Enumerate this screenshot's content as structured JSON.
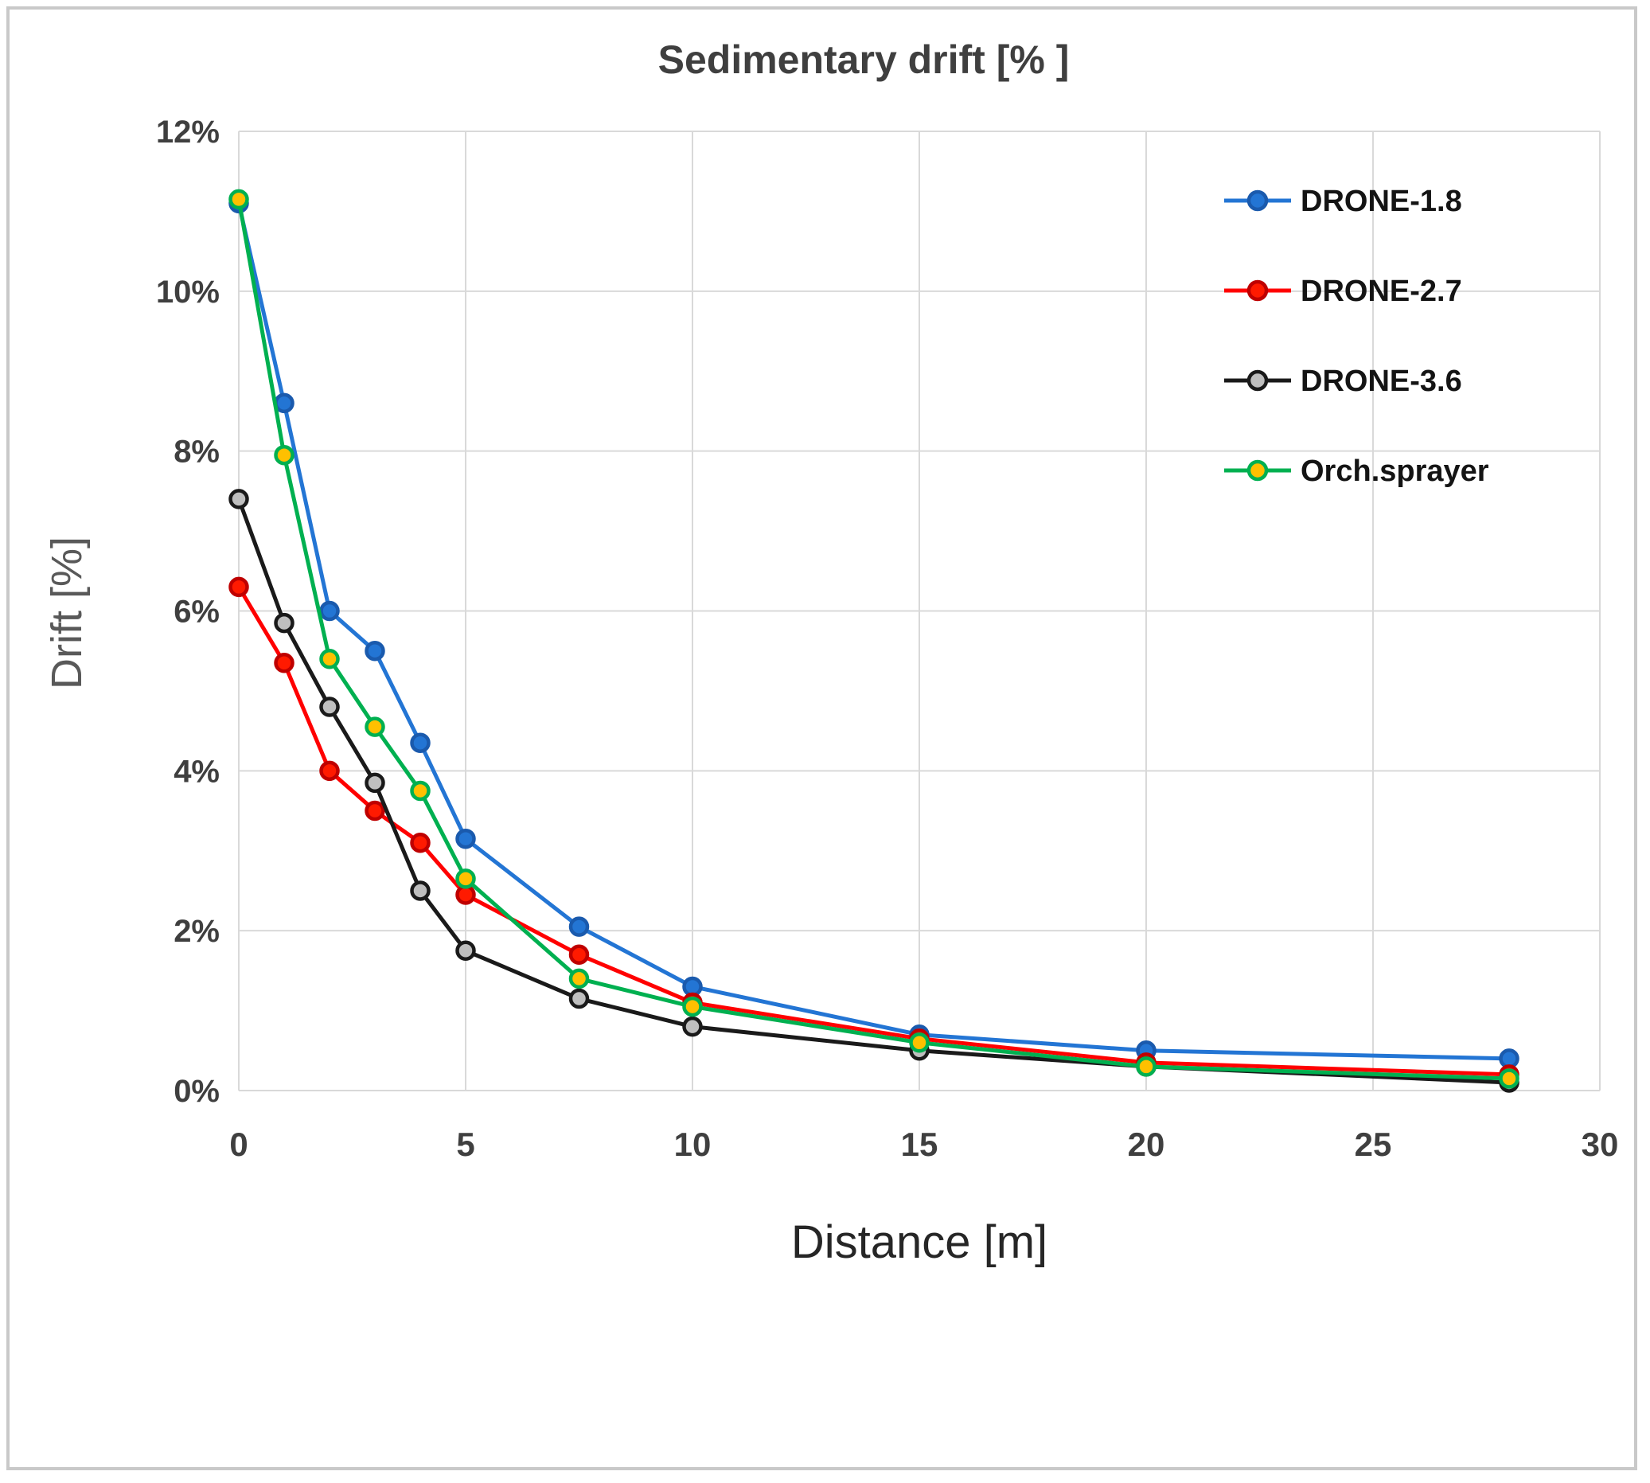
{
  "figure": {
    "background": "#ffffff",
    "border_color": "#c9c9c9"
  },
  "chart_data": {
    "type": "line",
    "title": "Sedimentary drift [% ]",
    "xlabel": "Distance [m]",
    "ylabel": "Drift [%]",
    "x": [
      0,
      1,
      2,
      3,
      4,
      5,
      7.5,
      10,
      15,
      20,
      28
    ],
    "xlim": [
      0,
      30
    ],
    "ylim": [
      0,
      12
    ],
    "x_ticks": [
      0,
      5,
      10,
      15,
      20,
      25,
      30
    ],
    "y_ticks": [
      0,
      2,
      4,
      6,
      8,
      10,
      12
    ],
    "y_tick_suffix": "%",
    "grid": true,
    "gridline_color": "#d9d9d9",
    "legend_position": "top-right",
    "series": [
      {
        "name": "DRONE-1.8",
        "color": "#2375d4",
        "marker_fill": "#2375d4",
        "marker_stroke": "#1a5aad",
        "values": [
          11.1,
          8.6,
          6.0,
          5.5,
          4.35,
          3.15,
          2.05,
          1.3,
          0.7,
          0.5,
          0.4
        ]
      },
      {
        "name": "DRONE-2.7",
        "color": "#ff0000",
        "marker_fill": "#ff1a00",
        "marker_stroke": "#bf0000",
        "values": [
          6.3,
          5.35,
          4.0,
          3.5,
          3.1,
          2.45,
          1.7,
          1.1,
          0.65,
          0.35,
          0.2
        ]
      },
      {
        "name": "DRONE-3.6",
        "color": "#1a1a1a",
        "marker_fill": "#bfbfbf",
        "marker_stroke": "#1a1a1a",
        "values": [
          7.4,
          5.85,
          4.8,
          3.85,
          2.5,
          1.75,
          1.15,
          0.8,
          0.5,
          0.3,
          0.1
        ]
      },
      {
        "name": "Orch.sprayer",
        "color": "#00b050",
        "marker_fill": "#ffc000",
        "marker_stroke": "#00b050",
        "values": [
          11.15,
          7.95,
          5.4,
          4.55,
          3.75,
          2.65,
          1.4,
          1.05,
          0.6,
          0.3,
          0.15
        ]
      }
    ]
  }
}
